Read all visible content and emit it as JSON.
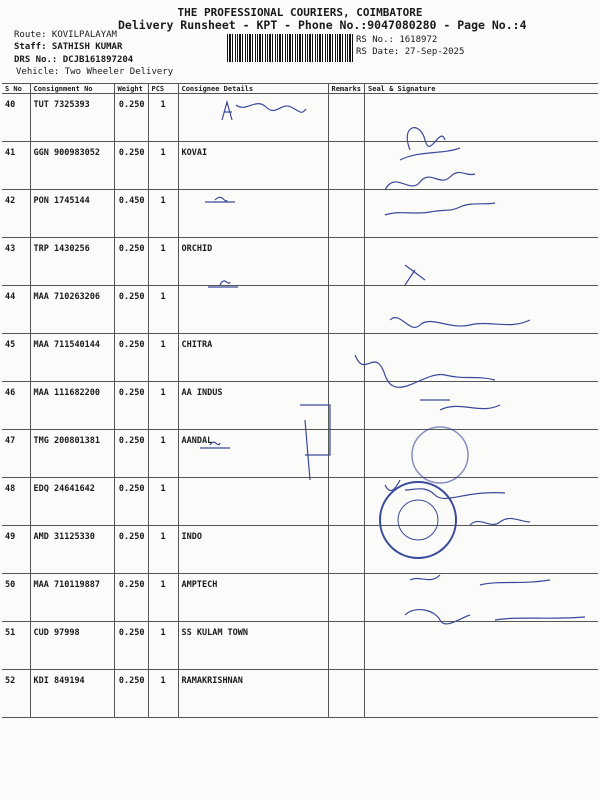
{
  "header": {
    "title": "THE PROFESSIONAL COURIERS, COIMBATORE",
    "subtitle": "Delivery Runsheet - KPT - Phone No.:9047080280 - Page No.:4",
    "route": "Route: KOVILPALAYAM",
    "staff": "Staff: SATHISH KUMAR",
    "drs": "DRS No.: DCJB161897204",
    "vehicle": "Vehicle: Two Wheeler Delivery",
    "rs_no": "RS No.: 1618972",
    "rs_date": "RS Date: 27-Sep-2025"
  },
  "table": {
    "columns": [
      "S No",
      "Consignment No",
      "Weight",
      "PCS",
      "Consignee Details",
      "Remarks",
      "Seal & Signature"
    ],
    "rows": [
      {
        "sno": "40",
        "cn": "TUT 7325393",
        "weight": "0.250",
        "pcs": "1",
        "consignee": ""
      },
      {
        "sno": "41",
        "cn": "GGN 900983052",
        "weight": "0.250",
        "pcs": "1",
        "consignee": "KOVAI"
      },
      {
        "sno": "42",
        "cn": "PON 1745144",
        "weight": "0.450",
        "pcs": "1",
        "consignee": ""
      },
      {
        "sno": "43",
        "cn": "TRP 1430256",
        "weight": "0.250",
        "pcs": "1",
        "consignee": "ORCHID"
      },
      {
        "sno": "44",
        "cn": "MAA 710263206",
        "weight": "0.250",
        "pcs": "1",
        "consignee": ""
      },
      {
        "sno": "45",
        "cn": "MAA 711540144",
        "weight": "0.250",
        "pcs": "1",
        "consignee": "CHITRA"
      },
      {
        "sno": "46",
        "cn": "MAA 111682200",
        "weight": "0.250",
        "pcs": "1",
        "consignee": "AA INDUS"
      },
      {
        "sno": "47",
        "cn": "TMG 200801381",
        "weight": "0.250",
        "pcs": "1",
        "consignee": "AANDAL"
      },
      {
        "sno": "48",
        "cn": "EDQ 24641642",
        "weight": "0.250",
        "pcs": "1",
        "consignee": ""
      },
      {
        "sno": "49",
        "cn": "AMD 31125330",
        "weight": "0.250",
        "pcs": "1",
        "consignee": "INDO"
      },
      {
        "sno": "50",
        "cn": "MAA 710119887",
        "weight": "0.250",
        "pcs": "1",
        "consignee": "AMPTECH"
      },
      {
        "sno": "51",
        "cn": "CUD 97998",
        "weight": "0.250",
        "pcs": "1",
        "consignee": "SS KULAM TOWN"
      },
      {
        "sno": "52",
        "cn": "KDI 849194",
        "weight": "0.250",
        "pcs": "1",
        "consignee": "RAMAKRISHNAN"
      }
    ]
  },
  "stamp": {
    "text": "Amptech Power Transformers Cbe-107"
  },
  "colors": {
    "ink": "#3a4a9a",
    "print": "#1a1a1a"
  }
}
